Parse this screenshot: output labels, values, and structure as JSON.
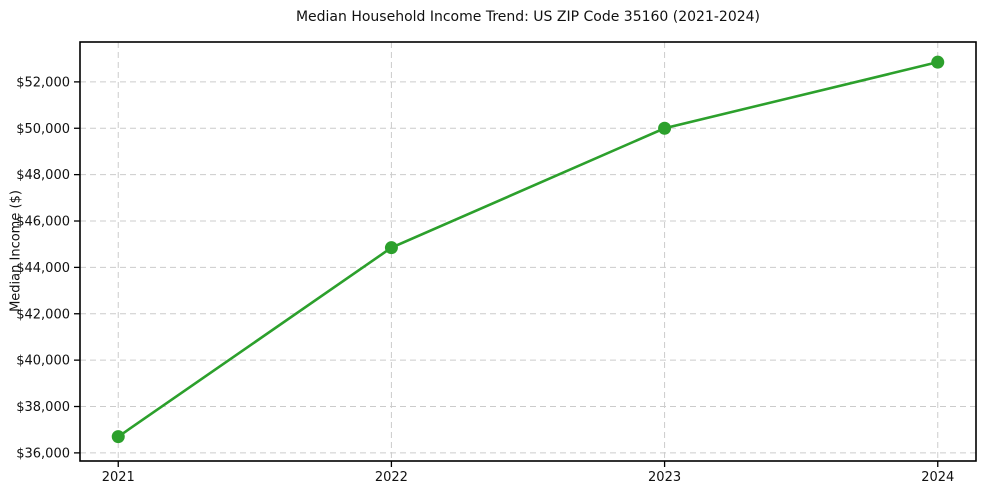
{
  "figure": {
    "background": "#ffffff",
    "spine_color": "#000000",
    "grid_color": "#cccccc",
    "tick_color": "#000000",
    "text_color": "#111111"
  },
  "chart_data": {
    "type": "line",
    "title": "Median Household Income Trend: US ZIP Code 35160 (2021-2024)",
    "xlabel": "",
    "ylabel": "Median Income ($)",
    "x": [
      2021,
      2022,
      2023,
      2024
    ],
    "x_tick_labels": [
      "2021",
      "2022",
      "2023",
      "2024"
    ],
    "y_ticks": [
      36000,
      38000,
      40000,
      42000,
      44000,
      46000,
      48000,
      50000,
      52000
    ],
    "y_tick_labels": [
      "$36,000",
      "$38,000",
      "$40,000",
      "$42,000",
      "$44,000",
      "$46,000",
      "$48,000",
      "$50,000",
      "$52,000"
    ],
    "series": [
      {
        "name": "Median Household Income",
        "color": "#2ca02c",
        "marker": "circle",
        "values": [
          36700,
          44850,
          50000,
          52850
        ]
      }
    ],
    "xlim": [
      2020.86,
      2024.14
    ],
    "ylim": [
      35650,
      53720
    ],
    "grid": true,
    "grid_linestyle": "dashed",
    "legend_position": "none"
  }
}
